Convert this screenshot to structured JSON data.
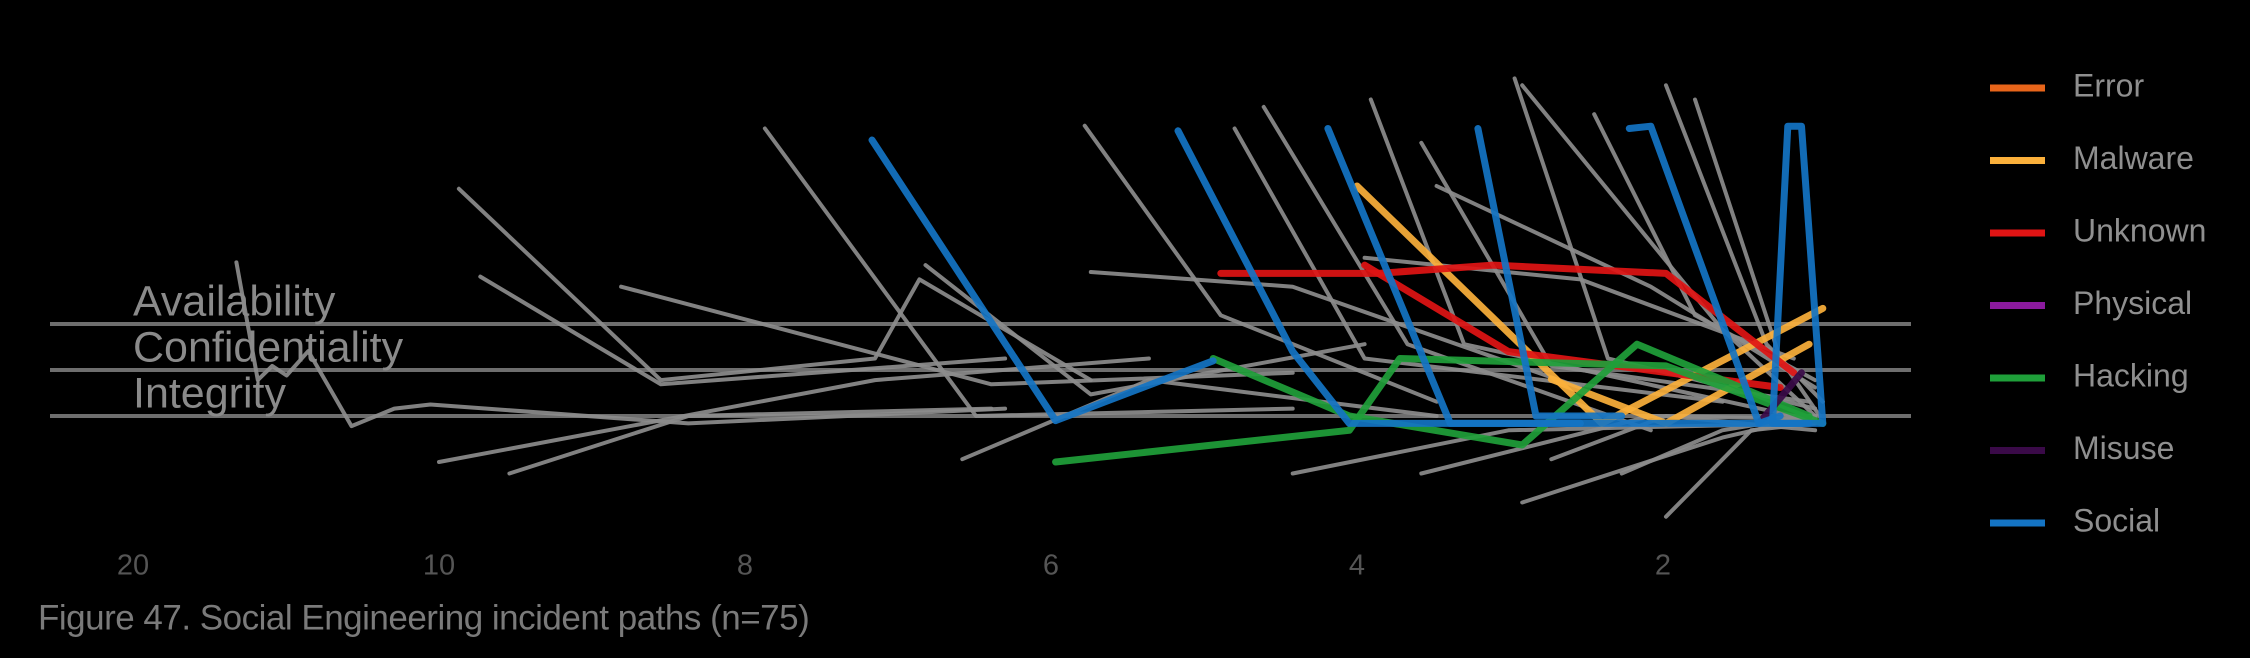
{
  "chart_data": {
    "type": "line",
    "caption": "Figure 47. Social Engineering incident paths (n=75)",
    "xlim": [
      22.7,
      0.37
    ],
    "xticks": [
      20,
      10,
      8,
      6,
      4,
      2
    ],
    "ylim": [
      -4,
      10
    ],
    "yticks": [
      {
        "value": 3,
        "label": "Availability"
      },
      {
        "value": 2,
        "label": "Confidentiality"
      },
      {
        "value": 1,
        "label": "Integrity"
      }
    ],
    "gray_paths": {
      "color": "#8c8c8c",
      "paths": [
        {
          "x": [
            16.62,
            15.92,
            15.45,
            14.98,
            14.27,
            12.86,
            11.46,
            10.28,
            8.37,
            6.3
          ],
          "y": [
            4.34,
            1.78,
            2.09,
            1.88,
            2.41,
            0.78,
            1.16,
            1.25,
            0.84,
            1.16
          ]
        },
        {
          "x": [
            9.87,
            8.55,
            7.15,
            6.86,
            5.74
          ],
          "y": [
            5.94,
            1.78,
            2.25,
            3.97,
            1.78
          ]
        },
        {
          "x": [
            9.73,
            8.55,
            6.3
          ],
          "y": [
            4.03,
            1.69,
            2.25
          ]
        },
        {
          "x": [
            10.0,
            7.15,
            5.36
          ],
          "y": [
            0.0,
            1.78,
            2.25
          ]
        },
        {
          "x": [
            9.54,
            8.37,
            6.39
          ],
          "y": [
            -0.25,
            1.0,
            1.16
          ]
        },
        {
          "x": [
            8.81,
            6.39,
            4.42
          ],
          "y": [
            3.81,
            1.69,
            1.94
          ]
        },
        {
          "x": [
            7.87,
            6.49,
            4.42
          ],
          "y": [
            7.25,
            1.0,
            1.16
          ]
        },
        {
          "x": [
            6.82,
            5.74,
            3.95
          ],
          "y": [
            4.28,
            1.47,
            2.56
          ]
        },
        {
          "x": [
            5.78,
            4.89,
            3.48
          ],
          "y": [
            7.31,
            3.19,
            1.31
          ]
        },
        {
          "x": [
            5.74,
            4.42,
            2.54
          ],
          "y": [
            4.13,
            3.81,
            1.62
          ]
        },
        {
          "x": [
            6.58,
            5.36,
            3.48
          ],
          "y": [
            0.06,
            1.78,
            1.0
          ]
        },
        {
          "x": [
            4.8,
            3.95,
            1.61
          ],
          "y": [
            7.25,
            2.25,
            1.31
          ]
        },
        {
          "x": [
            3.91,
            3.3,
            1.14
          ],
          "y": [
            7.88,
            2.56,
            1.0
          ]
        },
        {
          "x": [
            3.58,
            2.73,
            1.04
          ],
          "y": [
            6.94,
            2.09,
            1.31
          ]
        },
        {
          "x": [
            2.97,
            2.36,
            1.0
          ],
          "y": [
            8.34,
            2.25,
            1.16
          ]
        },
        {
          "x": [
            2.92,
            1.61,
            1.0
          ],
          "y": [
            8.19,
            2.88,
            1.0
          ]
        },
        {
          "x": [
            1.98,
            1.32,
            0.95
          ],
          "y": [
            8.19,
            2.56,
            1.31
          ]
        },
        {
          "x": [
            1.79,
            1.23,
            0.97
          ],
          "y": [
            7.88,
            2.25,
            1.0
          ]
        },
        {
          "x": [
            2.92,
            1.61,
            1.0
          ],
          "y": [
            -0.88,
            0.53,
            1.0
          ]
        },
        {
          "x": [
            1.98,
            1.42,
            1.0
          ],
          "y": [
            -1.19,
            0.69,
            0.84
          ]
        },
        {
          "x": [
            3.58,
            2.08,
            1.0
          ],
          "y": [
            -0.25,
            1.0,
            0.94
          ]
        },
        {
          "x": [
            4.42,
            3.01,
            1.04
          ],
          "y": [
            -0.25,
            0.69,
            0.84
          ]
        },
        {
          "x": [
            3.48,
            2.08,
            1.0
          ],
          "y": [
            6.0,
            3.81,
            1.62
          ]
        },
        {
          "x": [
            2.45,
            1.79,
            1.0
          ],
          "y": [
            7.56,
            3.19,
            1.78
          ]
        },
        {
          "x": [
            3.95,
            2.54,
            1.14
          ],
          "y": [
            4.44,
            3.97,
            2.25
          ]
        },
        {
          "x": [
            4.61,
            3.67,
            2.08
          ],
          "y": [
            7.72,
            2.56,
            0.69
          ]
        },
        {
          "x": [
            2.73,
            1.98,
            1.0
          ],
          "y": [
            0.06,
            1.0,
            0.69
          ]
        },
        {
          "x": [
            2.27,
            1.61,
            1.04
          ],
          "y": [
            -0.25,
            0.69,
            1.0
          ]
        }
      ]
    },
    "series": [
      {
        "name": "Error",
        "color": "#e8651a",
        "paths": []
      },
      {
        "name": "Malware",
        "color": "#fbb03b",
        "paths": [
          {
            "x": [
              4.0,
              2.4,
              0.95
            ],
            "y": [
              6.0,
              0.84,
              3.34
            ]
          },
          {
            "x": [
              2.73,
              1.98,
              1.04
            ],
            "y": [
              1.8,
              0.84,
              2.56
            ]
          }
        ]
      },
      {
        "name": "Unknown",
        "color": "#e01414",
        "paths": [
          {
            "x": [
              4.89,
              3.86,
              3.11,
              1.98,
              1.14
            ],
            "y": [
              4.1,
              4.1,
              4.28,
              4.1,
              1.94
            ]
          },
          {
            "x": [
              3.95,
              3.01,
              1.23
            ],
            "y": [
              4.28,
              2.4,
              1.62
            ]
          }
        ]
      },
      {
        "name": "Physical",
        "color": "#8b1a9e",
        "paths": []
      },
      {
        "name": "Hacking",
        "color": "#1fa03a",
        "paths": [
          {
            "x": [
              5.97,
              4.05,
              3.72,
              1.98,
              0.95
            ],
            "y": [
              0.0,
              0.69,
              2.25,
              2.09,
              0.84
            ]
          },
          {
            "x": [
              4.94,
              4.05,
              2.92,
              2.17,
              1.04
            ],
            "y": [
              2.25,
              1.0,
              0.37,
              2.56,
              1.0
            ]
          }
        ]
      },
      {
        "name": "Misuse",
        "color": "#3a0a48",
        "paths": [
          {
            "x": [
              1.37,
              1.09
            ],
            "y": [
              0.84,
              1.94
            ]
          }
        ]
      },
      {
        "name": "Social",
        "color": "#1474c4",
        "paths": [
          {
            "x": [
              7.17,
              5.97,
              4.94
            ],
            "y": [
              7.0,
              0.9,
              2.2
            ]
          },
          {
            "x": [
              5.17,
              4.42,
              4.05,
              2.54
            ],
            "y": [
              7.2,
              2.4,
              0.84,
              0.84
            ]
          },
          {
            "x": [
              4.19,
              3.39,
              1.04
            ],
            "y": [
              7.25,
              0.84,
              0.84
            ]
          },
          {
            "x": [
              3.21,
              2.83,
              2.27
            ],
            "y": [
              7.25,
              1.0,
              1.0
            ]
          },
          {
            "x": [
              2.22,
              2.08,
              1.37,
              1.23
            ],
            "y": [
              7.25,
              7.3,
              0.84,
              1.0
            ]
          },
          {
            "x": [
              1.18,
              1.09,
              0.95,
              1.28,
              1.18
            ],
            "y": [
              7.3,
              7.3,
              0.84,
              0.84,
              7.3
            ]
          }
        ]
      }
    ]
  }
}
